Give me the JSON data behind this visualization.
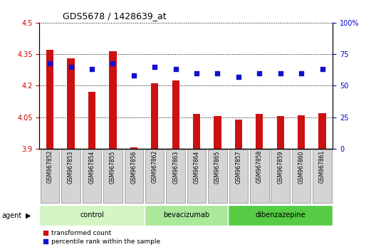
{
  "title": "GDS5678 / 1428639_at",
  "samples": [
    "GSM967852",
    "GSM967853",
    "GSM967854",
    "GSM967855",
    "GSM967856",
    "GSM967862",
    "GSM967863",
    "GSM967864",
    "GSM967865",
    "GSM967857",
    "GSM967858",
    "GSM967859",
    "GSM967860",
    "GSM967861"
  ],
  "transformed_counts": [
    4.37,
    4.33,
    4.17,
    4.365,
    3.905,
    4.21,
    4.225,
    4.065,
    4.055,
    4.04,
    4.065,
    4.055,
    4.06,
    4.07
  ],
  "percentile_ranks": [
    68,
    65,
    63,
    68,
    58,
    65,
    63,
    60,
    60,
    57,
    60,
    60,
    60,
    63
  ],
  "groups": [
    {
      "name": "control",
      "start": 0,
      "end": 5,
      "color": "#d4f5c4"
    },
    {
      "name": "bevacizumab",
      "start": 5,
      "end": 9,
      "color": "#aae89a"
    },
    {
      "name": "dibenzazepine",
      "start": 9,
      "end": 14,
      "color": "#55cc44"
    }
  ],
  "ylim_left": [
    3.9,
    4.5
  ],
  "ylim_right": [
    0,
    100
  ],
  "yticks_left": [
    3.9,
    4.05,
    4.2,
    4.35,
    4.5
  ],
  "yticks_right": [
    0,
    25,
    50,
    75,
    100
  ],
  "ytick_labels_left": [
    "3.9",
    "4.05",
    "4.2",
    "4.35",
    "4.5"
  ],
  "ytick_labels_right": [
    "0",
    "25",
    "50",
    "75",
    "100%"
  ],
  "bar_color": "#cc1111",
  "dot_color": "#1111cc",
  "bar_width": 0.35,
  "background_color": "#ffffff",
  "plot_bg_color": "#ffffff",
  "agent_label": "agent",
  "legend_items": [
    {
      "label": "transformed count",
      "color": "#cc1111",
      "marker": "s"
    },
    {
      "label": "percentile rank within the sample",
      "color": "#1111cc",
      "marker": "s"
    }
  ]
}
